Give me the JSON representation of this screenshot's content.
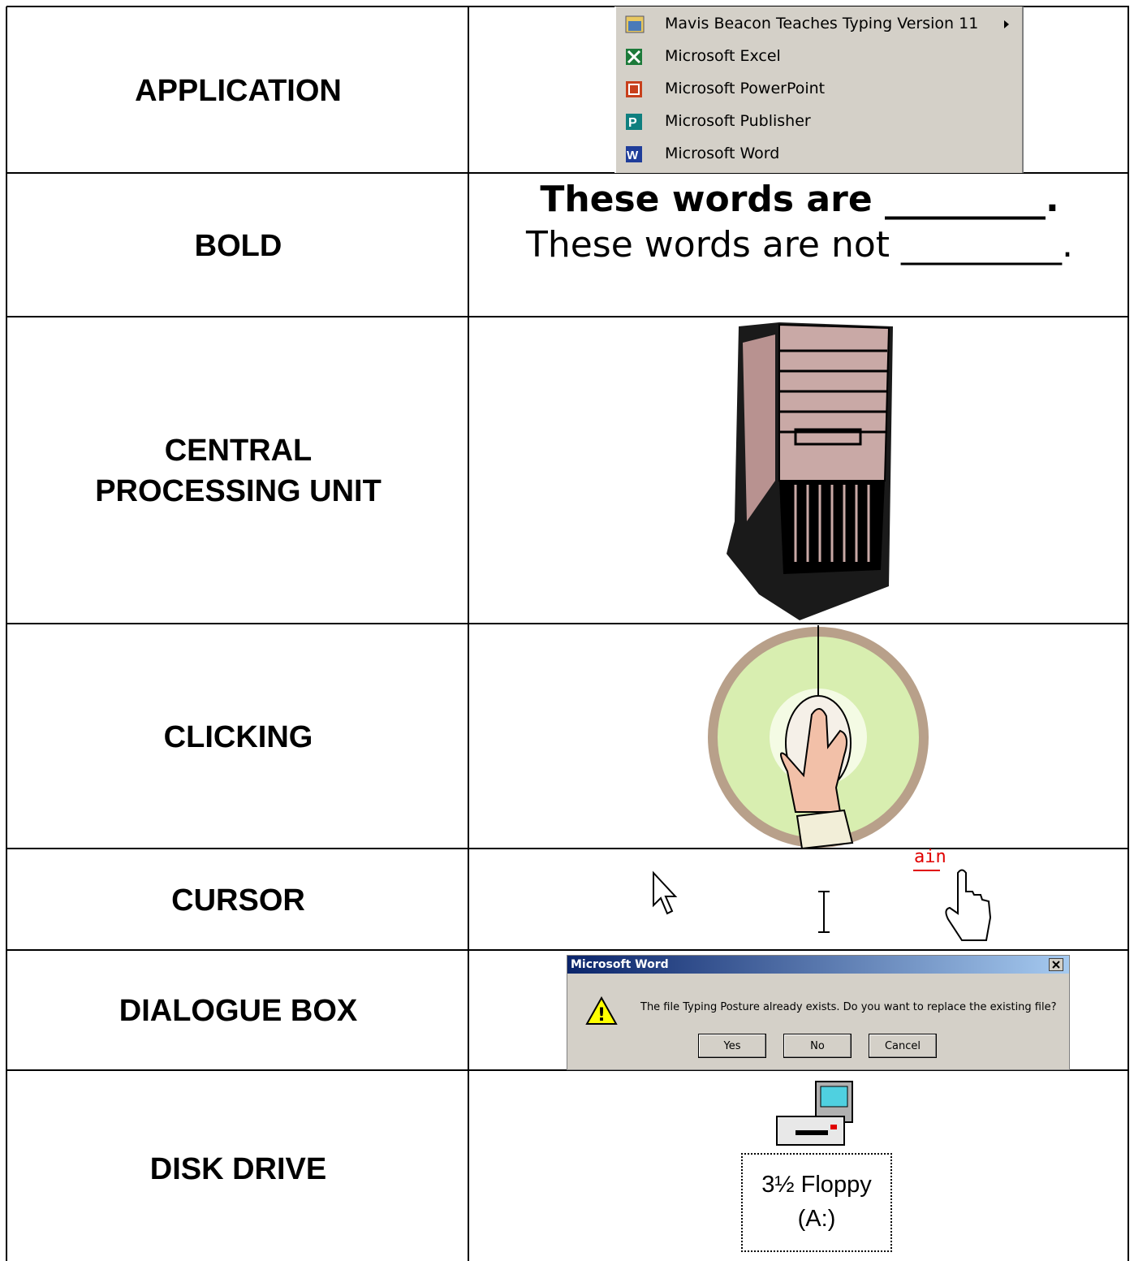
{
  "table": {
    "rows": [
      {
        "term": "APPLICATION",
        "menu": [
          "Mavis Beacon Teaches Typing Version 11",
          "Microsoft Excel",
          "Microsoft PowerPoint",
          "Microsoft Publisher",
          "Microsoft Word"
        ]
      },
      {
        "term": "BOLD",
        "lines": [
          "These words are _________.",
          "These words are not _________."
        ]
      },
      {
        "term": "CENTRAL PROCESSING UNIT"
      },
      {
        "term": "CLICKING"
      },
      {
        "term": "CURSOR",
        "link_fragment": "ain"
      },
      {
        "term": "DIALOGUE BOX",
        "dialog": {
          "title": "Microsoft Word",
          "message": "The file Typing Posture already exists. Do you want to replace the existing file?",
          "buttons": [
            "Yes",
            "No",
            "Cancel"
          ]
        }
      },
      {
        "term": "DISK DRIVE",
        "drive_label": [
          "3½ Floppy",
          "(A:)"
        ]
      }
    ]
  }
}
